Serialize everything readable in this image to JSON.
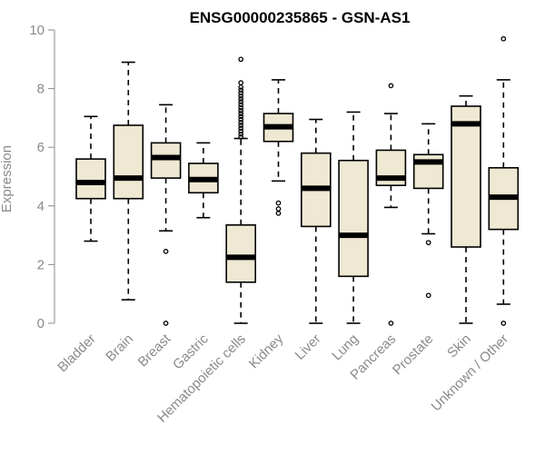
{
  "chart_data": {
    "type": "boxplot",
    "title": "ENSG00000235865 - GSN-AS1",
    "xlabel": "",
    "ylabel": "Expression",
    "ylim": [
      0,
      10
    ],
    "yticks": [
      0,
      2,
      4,
      6,
      8,
      10
    ],
    "box_color": "#efe8d2",
    "categories": [
      "Bladder",
      "Brain",
      "Breast",
      "Gastric",
      "Hematopoietic cells",
      "Kidney",
      "Liver",
      "Lung",
      "Pancreas",
      "Prostate",
      "Skin",
      "Unknown / Other"
    ],
    "boxes": [
      {
        "min": 2.8,
        "q1": 4.25,
        "median": 4.8,
        "q3": 5.6,
        "max": 7.05,
        "outliers": []
      },
      {
        "min": 0.8,
        "q1": 4.25,
        "median": 4.95,
        "q3": 6.75,
        "max": 8.9,
        "outliers": []
      },
      {
        "min": 3.15,
        "q1": 4.95,
        "median": 5.65,
        "q3": 6.15,
        "max": 7.45,
        "outliers": [
          2.45,
          0.0
        ]
      },
      {
        "min": 3.6,
        "q1": 4.45,
        "median": 4.9,
        "q3": 5.45,
        "max": 6.15,
        "outliers": []
      },
      {
        "min": 0.0,
        "q1": 1.4,
        "median": 2.25,
        "q3": 3.35,
        "max": 6.3,
        "outliers": [
          6.35,
          6.45,
          6.55,
          6.65,
          6.75,
          6.85,
          6.95,
          7.05,
          7.15,
          7.25,
          7.35,
          7.45,
          7.55,
          7.65,
          7.75,
          7.85,
          7.95,
          8.05,
          8.2,
          9.0
        ]
      },
      {
        "min": 4.85,
        "q1": 6.2,
        "median": 6.7,
        "q3": 7.15,
        "max": 8.3,
        "outliers": [
          4.1,
          3.9,
          3.75
        ]
      },
      {
        "min": 0.0,
        "q1": 3.3,
        "median": 4.6,
        "q3": 5.8,
        "max": 6.95,
        "outliers": []
      },
      {
        "min": 0.0,
        "q1": 1.6,
        "median": 3.0,
        "q3": 5.55,
        "max": 7.2,
        "outliers": []
      },
      {
        "min": 3.95,
        "q1": 4.7,
        "median": 4.95,
        "q3": 5.9,
        "max": 7.15,
        "outliers": [
          8.1,
          0.0
        ]
      },
      {
        "min": 3.05,
        "q1": 4.6,
        "median": 5.5,
        "q3": 5.75,
        "max": 6.8,
        "outliers": [
          2.75,
          0.95
        ]
      },
      {
        "min": 0.0,
        "q1": 2.6,
        "median": 6.8,
        "q3": 7.4,
        "max": 7.75,
        "outliers": []
      },
      {
        "min": 0.65,
        "q1": 3.2,
        "median": 4.3,
        "q3": 5.3,
        "max": 8.3,
        "outliers": [
          9.7,
          0.0
        ]
      }
    ]
  }
}
